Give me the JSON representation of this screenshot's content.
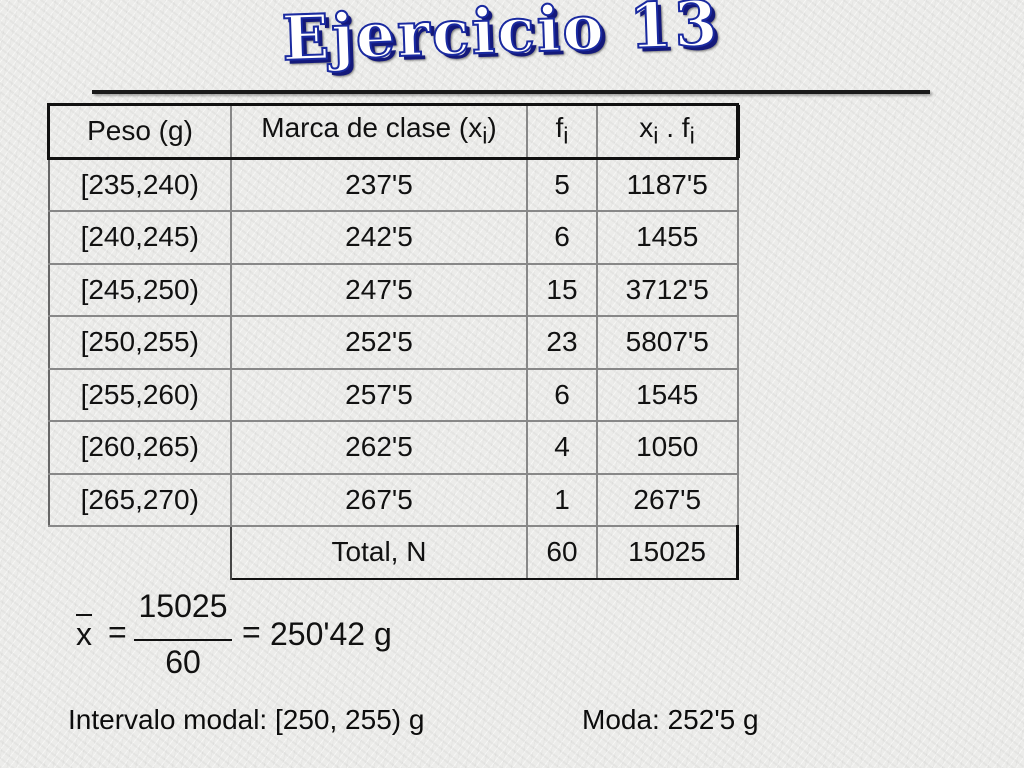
{
  "title": "Ejercicio 13",
  "table": {
    "headers": [
      {
        "main": "Peso (g)"
      },
      {
        "main": "Marca de clase (x",
        "sub": "i",
        "tail": ")"
      },
      {
        "main": "f",
        "sub": "i"
      },
      {
        "main": "x",
        "sub": "i",
        "mid": " . f",
        "sub2": "i"
      }
    ],
    "rows": [
      [
        "[235,240)",
        "237'5",
        "5",
        "1187'5"
      ],
      [
        "[240,245)",
        "242'5",
        "6",
        "1455"
      ],
      [
        "[245,250)",
        "247'5",
        "15",
        "3712'5"
      ],
      [
        "[250,255)",
        "252'5",
        "23",
        "5807'5"
      ],
      [
        "[255,260)",
        "257'5",
        "6",
        "1545"
      ],
      [
        "[260,265)",
        "262'5",
        "4",
        "1050"
      ],
      [
        "[265,270)",
        "267'5",
        "1",
        "267'5"
      ]
    ],
    "total": {
      "label": "Total, N",
      "f": "60",
      "xf": "15025"
    }
  },
  "formula": {
    "var": "x",
    "eq": "=",
    "numerator": "15025",
    "denominator": "60",
    "result": "250'42 g"
  },
  "summary": {
    "modal_interval": "Intervalo modal: [250, 255) g",
    "mode": "Moda: 252'5 g"
  },
  "colors": {
    "title_fill": "#ffffff",
    "title_outline": "#1a2aa0",
    "title_shadow": "#14197a"
  }
}
